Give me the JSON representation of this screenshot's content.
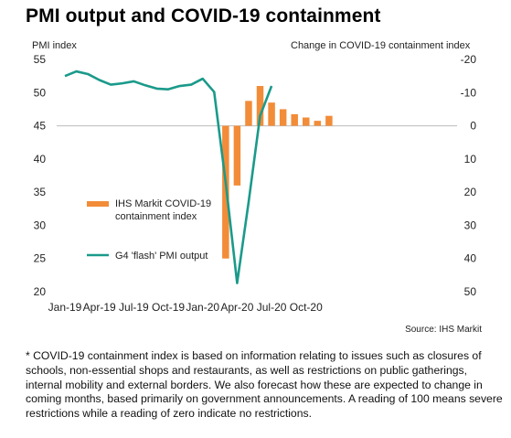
{
  "title": "PMI output and COVID-19 containment",
  "footnote": "* COVID-19 containment index is based on information relating to issues such as closures of schools, non-essential shops and restaurants, as well as restrictions on public gatherings, internal mobility and external borders. We also forecast how these are expected to change in coming months, based primarily on government announcements. A reading of 100 means severe restrictions while a reading of zero indicate no restrictions.",
  "source": "Source: IHS Markit",
  "colors": {
    "bar": "#f28c38",
    "line": "#1a9a8a",
    "zero_line": "#bbbbbb"
  },
  "chart_data": {
    "type": "bar+line",
    "x_labels": [
      "Jan-19",
      "Apr-19",
      "Jul-19",
      "Oct-19",
      "Jan-20",
      "Apr-20",
      "Jul-20",
      "Oct-20"
    ],
    "left_axis": {
      "title": "PMI index",
      "min": 20,
      "max": 55,
      "ticks": [
        20,
        25,
        30,
        35,
        40,
        45,
        50,
        55
      ]
    },
    "right_axis": {
      "title": "Change in COVID-19 containment index",
      "min": 50,
      "max": -20,
      "ticks": [
        -20,
        -10,
        0,
        10,
        20,
        30,
        40,
        50
      ]
    },
    "months": [
      "2019-01",
      "2019-02",
      "2019-03",
      "2019-04",
      "2019-05",
      "2019-06",
      "2019-07",
      "2019-08",
      "2019-09",
      "2019-10",
      "2019-11",
      "2019-12",
      "2020-01",
      "2020-02",
      "2020-03",
      "2020-04",
      "2020-05",
      "2020-06",
      "2020-07",
      "2020-08",
      "2020-09",
      "2020-10",
      "2020-11",
      "2020-12"
    ],
    "series": [
      {
        "name": "IHS Markit COVID-19 containment index",
        "type": "bar",
        "axis": "right",
        "points": [
          {
            "month": "2020-03",
            "value": 40
          },
          {
            "month": "2020-04",
            "value": 18
          },
          {
            "month": "2020-05",
            "value": -7.5
          },
          {
            "month": "2020-06",
            "value": -12
          },
          {
            "month": "2020-07",
            "value": -7
          },
          {
            "month": "2020-08",
            "value": -5
          },
          {
            "month": "2020-09",
            "value": -3.5
          },
          {
            "month": "2020-10",
            "value": -2.5
          },
          {
            "month": "2020-11",
            "value": -1.5
          },
          {
            "month": "2020-12",
            "value": -3
          }
        ]
      },
      {
        "name": "G4 'flash' PMI output",
        "type": "line",
        "axis": "left",
        "points": [
          {
            "month": "2019-01",
            "value": 52.5
          },
          {
            "month": "2019-02",
            "value": 53.2
          },
          {
            "month": "2019-03",
            "value": 52.8
          },
          {
            "month": "2019-04",
            "value": 51.9
          },
          {
            "month": "2019-05",
            "value": 51.2
          },
          {
            "month": "2019-06",
            "value": 51.4
          },
          {
            "month": "2019-07",
            "value": 51.7
          },
          {
            "month": "2019-08",
            "value": 51.1
          },
          {
            "month": "2019-09",
            "value": 50.6
          },
          {
            "month": "2019-10",
            "value": 50.5
          },
          {
            "month": "2019-11",
            "value": 51.0
          },
          {
            "month": "2019-12",
            "value": 51.2
          },
          {
            "month": "2020-01",
            "value": 52.1
          },
          {
            "month": "2020-02",
            "value": 50.1
          },
          {
            "month": "2020-03",
            "value": 36.5
          },
          {
            "month": "2020-04",
            "value": 21.3
          },
          {
            "month": "2020-05",
            "value": 33.5
          },
          {
            "month": "2020-06",
            "value": 46.5
          },
          {
            "month": "2020-07",
            "value": 51.0
          }
        ]
      }
    ],
    "legend": [
      "IHS Markit COVID-19 containment index",
      "G4 'flash' PMI output"
    ],
    "legend_position": "lower-left",
    "grid": false
  }
}
